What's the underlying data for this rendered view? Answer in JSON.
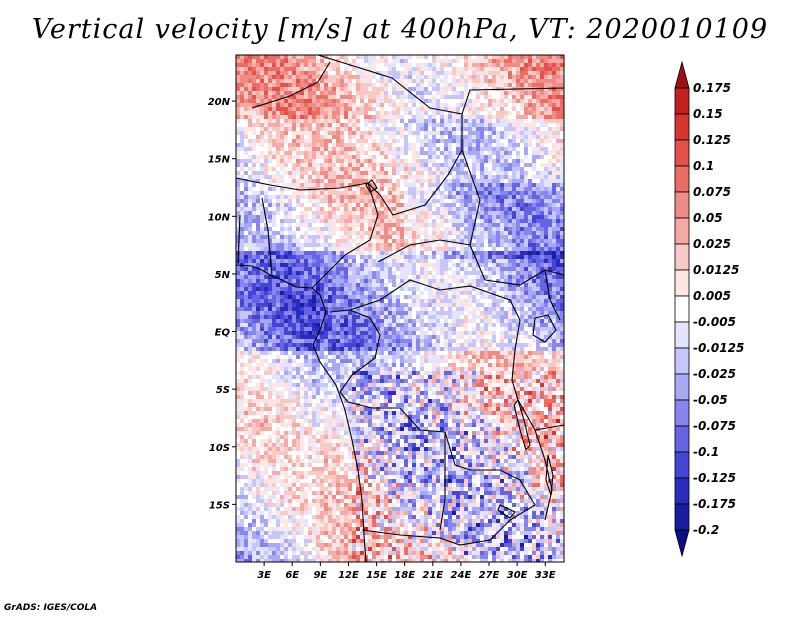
{
  "title": "Vertical velocity [m/s] at 400hPa, VT: 2020010109",
  "credit": "GrADS: IGES/COLA",
  "map": {
    "lon_range": [
      0,
      35
    ],
    "lat_range": [
      -20,
      24
    ],
    "lon_ticks": [
      "3E",
      "6E",
      "9E",
      "12E",
      "15E",
      "18E",
      "21E",
      "24E",
      "27E",
      "30E",
      "33E"
    ],
    "lon_tick_values": [
      3,
      6,
      9,
      12,
      15,
      18,
      21,
      24,
      27,
      30,
      33
    ],
    "lat_ticks": [
      "20N",
      "15N",
      "10N",
      "5N",
      "EQ",
      "5S",
      "10S",
      "15S"
    ],
    "lat_tick_values": [
      20,
      15,
      10,
      5,
      0,
      -5,
      -10,
      -15
    ]
  },
  "colorbar": {
    "labels": [
      "0.175",
      "0.15",
      "0.125",
      "0.1",
      "0.075",
      "0.05",
      "0.025",
      "0.0125",
      "0.005",
      "-0.005",
      "-0.0125",
      "-0.025",
      "-0.05",
      "-0.075",
      "-0.1",
      "-0.125",
      "-0.175",
      "-0.2"
    ],
    "colors": [
      "#9e0f15",
      "#c4201f",
      "#d7352f",
      "#e2514a",
      "#eb6d66",
      "#f08c86",
      "#f5aaa6",
      "#f9c9c6",
      "#fde6e4",
      "#ffffff",
      "#e4e4fd",
      "#c6c6fa",
      "#a8a8f4",
      "#8686ee",
      "#6464e4",
      "#4545d3",
      "#2b2bbd",
      "#1c1ca0",
      "#0f0f84"
    ]
  }
}
